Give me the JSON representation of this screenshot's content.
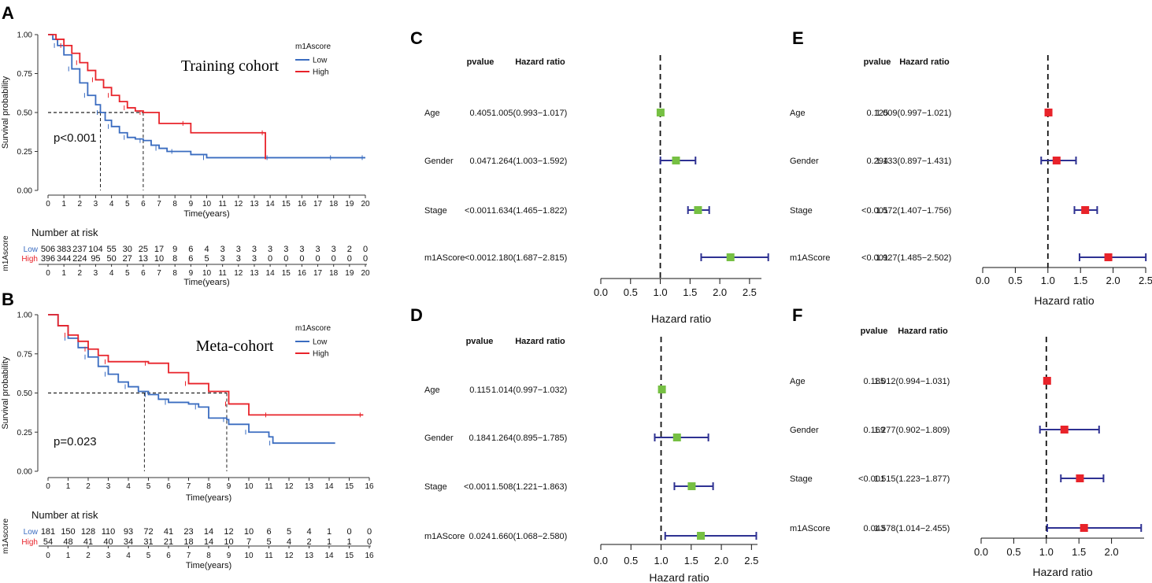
{
  "colors": {
    "low": "#3a6cc0",
    "high": "#e8232a",
    "green": "#76c043",
    "red_box": "#e8232a",
    "ci": "#2e3192"
  },
  "chart_data": [
    {
      "panel": "A",
      "type": "line",
      "subtype": "kaplan-meier",
      "title": "Training cohort",
      "pvalue_text": "p<0.001",
      "xlabel": "Time(years)",
      "ylabel": "Survival probability",
      "xlim": [
        0,
        20
      ],
      "ylim": [
        0,
        1
      ],
      "xticks": [
        "0",
        "1",
        "2",
        "3",
        "4",
        "5",
        "6",
        "7",
        "8",
        "9",
        "10",
        "11",
        "12",
        "13",
        "14",
        "15",
        "16",
        "17",
        "18",
        "19",
        "20"
      ],
      "yticks": [
        "0.00",
        "0.25",
        "0.50",
        "0.75",
        "1.00"
      ],
      "legend_title": "m1Ascore",
      "median_lines": [
        3.3,
        6.0
      ],
      "series": [
        {
          "name": "Low",
          "key": "low",
          "x": [
            0,
            0.3,
            0.6,
            1,
            1.5,
            2,
            2.5,
            3,
            3.3,
            3.6,
            4,
            4.5,
            5,
            5.5,
            6,
            6.5,
            7,
            7.5,
            8,
            9,
            10,
            12,
            14,
            16,
            18,
            19.5,
            20
          ],
          "y": [
            1,
            0.97,
            0.93,
            0.87,
            0.78,
            0.69,
            0.61,
            0.55,
            0.5,
            0.45,
            0.41,
            0.37,
            0.34,
            0.33,
            0.32,
            0.29,
            0.27,
            0.25,
            0.25,
            0.23,
            0.21,
            0.21,
            0.21,
            0.21,
            0.21,
            0.21,
            0.21
          ]
        },
        {
          "name": "High",
          "key": "high",
          "x": [
            0,
            0.5,
            1,
            1.5,
            2,
            2.5,
            3,
            3.5,
            4,
            4.5,
            5,
            5.5,
            6,
            7,
            8.7,
            9,
            13.7,
            13.7
          ],
          "y": [
            1,
            0.97,
            0.93,
            0.88,
            0.82,
            0.77,
            0.71,
            0.66,
            0.61,
            0.57,
            0.53,
            0.51,
            0.5,
            0.43,
            0.43,
            0.37,
            0.37,
            0.2
          ]
        }
      ],
      "risk_table": {
        "title": "Number at risk",
        "ylabel": "m1Ascore",
        "low": [
          "506",
          "383",
          "237",
          "104",
          "55",
          "30",
          "25",
          "17",
          "9",
          "6",
          "4",
          "3",
          "3",
          "3",
          "3",
          "3",
          "3",
          "3",
          "3",
          "2",
          "0"
        ],
        "high": [
          "396",
          "344",
          "224",
          "95",
          "50",
          "27",
          "13",
          "10",
          "8",
          "6",
          "5",
          "3",
          "3",
          "3",
          "0",
          "0",
          "0",
          "0",
          "0",
          "0",
          "0"
        ]
      }
    },
    {
      "panel": "B",
      "type": "line",
      "subtype": "kaplan-meier",
      "title": "Meta-cohort",
      "pvalue_text": "p=0.023",
      "xlabel": "Time(years)",
      "ylabel": "Survival probability",
      "xlim": [
        0,
        16
      ],
      "ylim": [
        0,
        1
      ],
      "xticks": [
        "0",
        "1",
        "2",
        "3",
        "4",
        "5",
        "6",
        "7",
        "8",
        "9",
        "10",
        "11",
        "12",
        "13",
        "14",
        "15",
        "16"
      ],
      "yticks": [
        "0.00",
        "0.25",
        "0.50",
        "0.75",
        "1.00"
      ],
      "legend_title": "m1Ascore",
      "median_lines": [
        4.8,
        8.9
      ],
      "series": [
        {
          "name": "Low",
          "key": "low",
          "x": [
            0,
            0.5,
            1,
            1.5,
            2,
            2.5,
            3,
            3.5,
            4,
            4.5,
            5,
            5.5,
            6,
            7,
            7.5,
            8,
            8.9,
            9,
            10,
            11,
            11.2,
            14.3
          ],
          "y": [
            1,
            0.93,
            0.85,
            0.79,
            0.73,
            0.67,
            0.62,
            0.57,
            0.54,
            0.51,
            0.49,
            0.46,
            0.44,
            0.43,
            0.41,
            0.34,
            0.33,
            0.3,
            0.25,
            0.22,
            0.18,
            0.18
          ]
        },
        {
          "name": "High",
          "key": "high",
          "x": [
            0,
            0.5,
            1,
            1.5,
            2,
            2.5,
            3,
            4,
            5,
            6,
            7,
            8,
            9,
            10,
            11,
            13,
            15.7
          ],
          "y": [
            1,
            0.93,
            0.87,
            0.83,
            0.78,
            0.74,
            0.7,
            0.7,
            0.69,
            0.63,
            0.56,
            0.51,
            0.43,
            0.36,
            0.36,
            0.36,
            0.36
          ]
        }
      ],
      "risk_table": {
        "title": "Number at risk",
        "ylabel": "m1Ascore",
        "low": [
          "181",
          "150",
          "128",
          "110",
          "93",
          "72",
          "41",
          "23",
          "14",
          "12",
          "10",
          "6",
          "5",
          "4",
          "1",
          "0",
          "0"
        ],
        "high": [
          "54",
          "48",
          "41",
          "40",
          "34",
          "31",
          "21",
          "18",
          "14",
          "10",
          "7",
          "5",
          "4",
          "2",
          "1",
          "1",
          "0"
        ]
      }
    },
    {
      "panel": "C",
      "type": "forest",
      "color": "green",
      "xlabel": "Hazard ratio",
      "xticks": [
        "0.0",
        "0.5",
        "1.0",
        "1.5",
        "2.0",
        "2.5"
      ],
      "xmax": 2.7,
      "headers": {
        "pvalue": "pvalue",
        "hr": "Hazard ratio"
      },
      "rows": [
        {
          "label": "Age",
          "pvalue": "0.405",
          "hr_text": "1.005(0.993−1.017)",
          "hr": 1.005,
          "lo": 0.993,
          "hi": 1.017
        },
        {
          "label": "Gender",
          "pvalue": "0.047",
          "hr_text": "1.264(1.003−1.592)",
          "hr": 1.264,
          "lo": 1.003,
          "hi": 1.592
        },
        {
          "label": "Stage",
          "pvalue": "<0.001",
          "hr_text": "1.634(1.465−1.822)",
          "hr": 1.634,
          "lo": 1.465,
          "hi": 1.822
        },
        {
          "label": "m1AScore",
          "pvalue": "<0.001",
          "hr_text": "2.180(1.687−2.815)",
          "hr": 2.18,
          "lo": 1.687,
          "hi": 2.815
        }
      ]
    },
    {
      "panel": "D",
      "type": "forest",
      "color": "green",
      "xlabel": "Hazard ratio",
      "xticks": [
        "0.0",
        "0.5",
        "1.0",
        "1.5",
        "2.0",
        "2.5"
      ],
      "xmax": 2.6,
      "headers": {
        "pvalue": "pvalue",
        "hr": "Hazard ratio"
      },
      "rows": [
        {
          "label": "Age",
          "pvalue": "0.115",
          "hr_text": "1.014(0.997−1.032)",
          "hr": 1.014,
          "lo": 0.997,
          "hi": 1.032
        },
        {
          "label": "Gender",
          "pvalue": "0.184",
          "hr_text": "1.264(0.895−1.785)",
          "hr": 1.264,
          "lo": 0.895,
          "hi": 1.785
        },
        {
          "label": "Stage",
          "pvalue": "<0.001",
          "hr_text": "1.508(1.221−1.863)",
          "hr": 1.508,
          "lo": 1.221,
          "hi": 1.863
        },
        {
          "label": "m1AScore",
          "pvalue": "0.024",
          "hr_text": "1.660(1.068−2.580)",
          "hr": 1.66,
          "lo": 1.068,
          "hi": 2.58
        }
      ]
    },
    {
      "panel": "E",
      "type": "forest",
      "color": "red_box",
      "xlabel": "Hazard ratio",
      "xticks": [
        "0.0",
        "0.5",
        "1.0",
        "1.5",
        "2.0",
        "2.5"
      ],
      "xmax": 2.5,
      "headers": {
        "pvalue": "pvalue",
        "hr": "Hazard ratio"
      },
      "rows": [
        {
          "label": "Age",
          "pvalue": "0.125",
          "hr_text": "1.009(0.997−1.021)",
          "hr": 1.009,
          "lo": 0.997,
          "hi": 1.021
        },
        {
          "label": "Gender",
          "pvalue": "0.294",
          "hr_text": "1.133(0.897−1.431)",
          "hr": 1.133,
          "lo": 0.897,
          "hi": 1.431
        },
        {
          "label": "Stage",
          "pvalue": "<0.001",
          "hr_text": "1.572(1.407−1.756)",
          "hr": 1.572,
          "lo": 1.407,
          "hi": 1.756
        },
        {
          "label": "m1AScore",
          "pvalue": "<0.001",
          "hr_text": "1.927(1.485−2.502)",
          "hr": 1.927,
          "lo": 1.485,
          "hi": 2.502
        }
      ]
    },
    {
      "panel": "F",
      "type": "forest",
      "color": "red_box",
      "xlabel": "Hazard ratio",
      "xticks": [
        "0.0",
        "0.5",
        "1.0",
        "1.5",
        "2.0"
      ],
      "xmax": 2.5,
      "headers": {
        "pvalue": "pvalue",
        "hr": "Hazard ratio"
      },
      "rows": [
        {
          "label": "Age",
          "pvalue": "0.185",
          "hr_text": "1.012(0.994−1.031)",
          "hr": 1.012,
          "lo": 0.994,
          "hi": 1.031
        },
        {
          "label": "Gender",
          "pvalue": "0.169",
          "hr_text": "1.277(0.902−1.809)",
          "hr": 1.277,
          "lo": 0.902,
          "hi": 1.809
        },
        {
          "label": "Stage",
          "pvalue": "<0.001",
          "hr_text": "1.515(1.223−1.877)",
          "hr": 1.515,
          "lo": 1.223,
          "hi": 1.877
        },
        {
          "label": "m1AScore",
          "pvalue": "0.043",
          "hr_text": "1.578(1.014−2.455)",
          "hr": 1.578,
          "lo": 1.014,
          "hi": 2.455
        }
      ]
    }
  ]
}
